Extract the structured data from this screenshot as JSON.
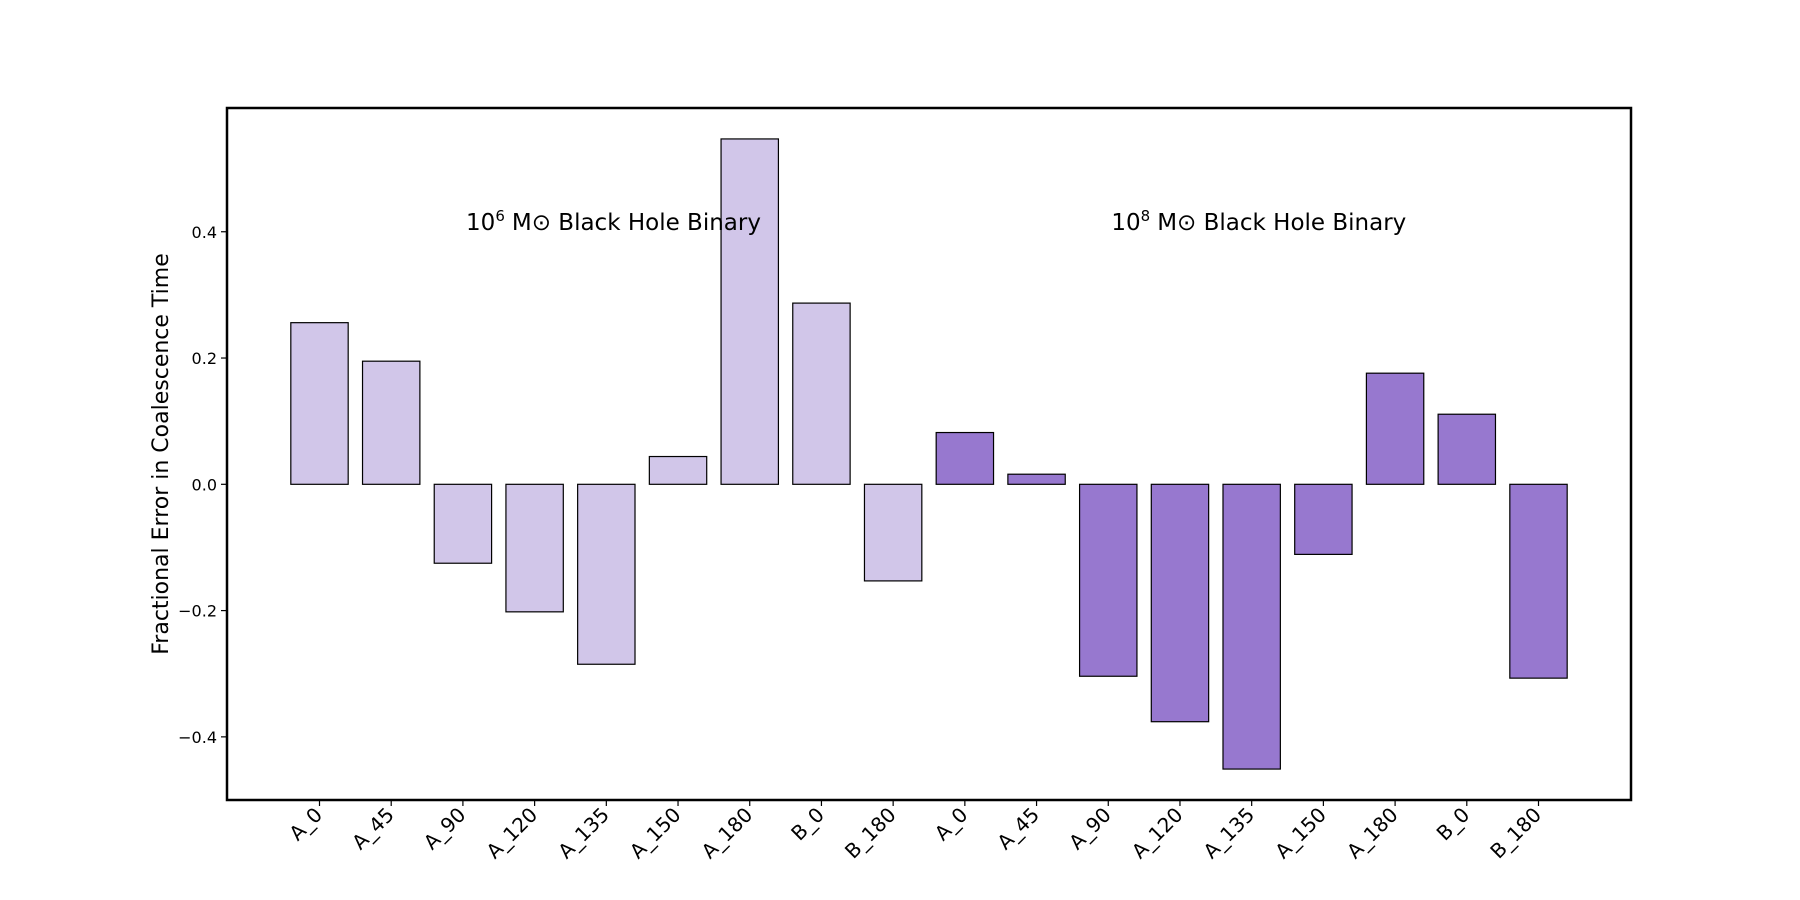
{
  "chart_data": {
    "type": "bar",
    "ylabel": "Fractional Error in Coalescence Time",
    "categories": [
      "A_0",
      "A_45",
      "A_90",
      "A_120",
      "A_135",
      "A_150",
      "A_180",
      "B_0",
      "B_180",
      "A_0",
      "A_45",
      "A_90",
      "A_120",
      "A_135",
      "A_150",
      "A_180",
      "B_0",
      "B_180"
    ],
    "values": [
      0.256,
      0.195,
      -0.125,
      -0.202,
      -0.285,
      0.044,
      0.547,
      0.287,
      -0.153,
      0.082,
      0.016,
      -0.304,
      -0.376,
      -0.451,
      -0.111,
      0.176,
      0.111,
      -0.307
    ],
    "colors": [
      "#d1c6e9",
      "#d1c6e9",
      "#d1c6e9",
      "#d1c6e9",
      "#d1c6e9",
      "#d1c6e9",
      "#d1c6e9",
      "#d1c6e9",
      "#d1c6e9",
      "#9778cf",
      "#9778cf",
      "#9778cf",
      "#9778cf",
      "#9778cf",
      "#9778cf",
      "#9778cf",
      "#9778cf",
      "#9778cf"
    ],
    "annotations": [
      {
        "base": "10",
        "exponent": "6",
        "text": "M⊙ Black Hole Binary"
      },
      {
        "base": "10",
        "exponent": "8",
        "text": "M⊙ Black Hole Binary"
      }
    ],
    "ylim": [
      -0.5,
      0.596
    ],
    "yticks": [
      {
        "value": -0.4,
        "label": "−0.4"
      },
      {
        "value": -0.2,
        "label": "−0.2"
      },
      {
        "value": 0,
        "label": "0.0"
      },
      0.2,
      0.4
    ],
    "grid": false
  }
}
